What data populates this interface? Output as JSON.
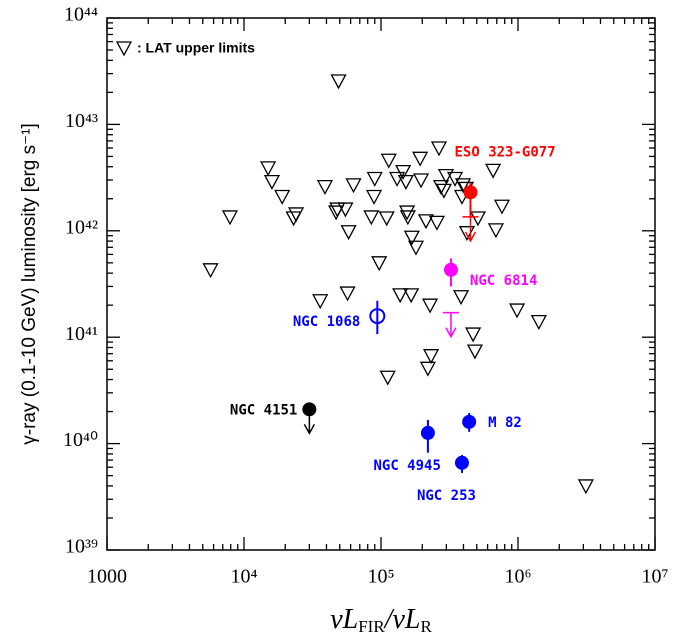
{
  "chart_data": {
    "type": "scatter",
    "xlabel": [
      "νL",
      "FIR",
      "/νL",
      "R"
    ],
    "ylabel": "γ-ray (0.1-10 GeV) luminosity [erg s⁻¹]",
    "log_x": true,
    "log_y": true,
    "xlim": [
      1000,
      10000000
    ],
    "ylim": [
      1e+39,
      1e+44
    ],
    "xticks": [
      1000,
      {
        "value": 10000,
        "label": "10⁴"
      },
      {
        "value": 100000,
        "label": "10⁵"
      },
      {
        "value": 1000000,
        "label": "10⁶"
      },
      {
        "value": 10000000,
        "label": "10⁷"
      }
    ],
    "yticks": [
      {
        "value": 1e+39,
        "label": "10³⁹"
      },
      {
        "value": 1e+40,
        "label": "10⁴⁰"
      },
      {
        "value": 1e+41,
        "label": "10⁴¹"
      },
      {
        "value": 1e+42,
        "label": "10⁴²"
      },
      {
        "value": 1e+43,
        "label": "10⁴³"
      },
      {
        "value": 1e+44,
        "label": "10⁴⁴"
      }
    ],
    "series": [
      {
        "name": ": LAT upper limits",
        "color": "#000000",
        "marker": "triangle-down",
        "x": [
          5700,
          7900,
          19000,
          15000,
          16000,
          24000,
          23000,
          49000,
          39000,
          48000,
          58000,
          63000,
          47000,
          55000,
          57000,
          36000,
          89000,
          97000,
          85000,
          90000,
          110000,
          114000,
          131000,
          145000,
          155000,
          157000,
          152000,
          168000,
          180000,
          193000,
          196000,
          213000,
          138000,
          166000,
          112000,
          265000,
          274000,
          256000,
          298000,
          397000,
          390000,
          424000,
          288000,
          384000,
          232000,
          220000,
          417000,
          470000,
          485000,
          658000,
          690000,
          764000,
          984000,
          1420000,
          3130000,
          347000,
          228000,
          510000
        ],
        "values": [
          4.3e+41,
          1.35e+42,
          2.1e+42,
          3.9e+42,
          2.9e+42,
          1.44e+42,
          1.32e+42,
          2.56e+43,
          2.6e+42,
          1.6e+42,
          9.8e+41,
          2.7e+42,
          1.5e+42,
          1.6e+42,
          2.6e+41,
          2.2e+41,
          2.1e+42,
          5e+41,
          1.35e+42,
          3.1e+42,
          1.32e+42,
          4.6e+42,
          3.1e+42,
          3.6e+42,
          1.5e+42,
          1.35e+42,
          2.9e+42,
          8.7e+41,
          7e+41,
          4.8e+42,
          3e+42,
          1.24e+42,
          2.5e+41,
          2.5e+41,
          4.2e+40,
          6e+42,
          2.6e+42,
          1.2e+42,
          3.3e+42,
          2.7e+42,
          2.1e+42,
          9.6e+41,
          2.4e+42,
          2.4e+41,
          6.7e+40,
          5.1e+40,
          2.5e+42,
          1.07e+41,
          7.4e+40,
          3.7e+42,
          1.02e+42,
          1.7e+42,
          1.8e+41,
          1.4e+41,
          4e+39,
          3.1e+42,
          2e+41,
          1.32e+42
        ]
      }
    ],
    "sources": [
      {
        "name": "ESO 323-G077",
        "color": "#ff0000",
        "filled": true,
        "x": 450000,
        "y": 2.3e+42,
        "y_err": [
          1.35e+42,
          2.8e+42
        ],
        "upper_limit": 1.35e+42
      },
      {
        "name": "NGC 6814",
        "color": "#ff00ff",
        "filled": true,
        "x": 324000,
        "y": 4.3e+41,
        "y_err": [
          3e+41,
          5.5e+41
        ],
        "upper_limit": 1.7e+41
      },
      {
        "name": "NGC 1068",
        "color": "#0000ff",
        "filled": false,
        "x": 94000,
        "y": 1.58e+41,
        "y_err": [
          1.07e+41,
          2.2e+41
        ]
      },
      {
        "name": "NGC 4151",
        "color": "#000000",
        "filled": true,
        "x": 30000,
        "y": 2.1e+40,
        "upper_limit": 2.1e+40
      },
      {
        "name": "NGC 4945",
        "color": "#0000ff",
        "filled": true,
        "x": 220000,
        "y": 1.26e+40,
        "y_err": [
          8.2e+39,
          1.67e+40
        ]
      },
      {
        "name": "M 82",
        "color": "#0000ff",
        "filled": true,
        "x": 440000,
        "y": 1.6e+40,
        "y_err": [
          1.29e+40,
          1.94e+40
        ]
      },
      {
        "name": "NGC 253",
        "color": "#0000ff",
        "filled": true,
        "x": 390000,
        "y": 6.6e+39,
        "y_err": [
          5.3e+39,
          7.8e+39
        ]
      }
    ]
  }
}
